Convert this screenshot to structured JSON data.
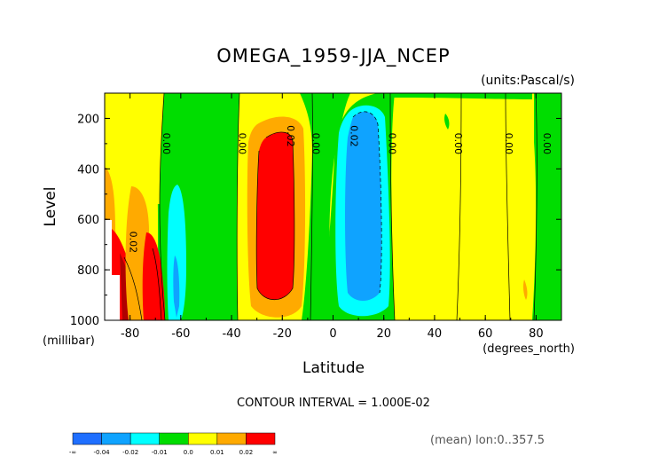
{
  "chart_data": {
    "type": "heatmap",
    "title": "OMEGA_1959-JJA_NCEP",
    "units_label": "(units:Pascal/s)",
    "xlabel": "Latitude",
    "x_units": "(degrees_north)",
    "ylabel": "Level",
    "y_units": "(millibar)",
    "xlim": [
      -90,
      90
    ],
    "ylim": [
      1000,
      100
    ],
    "x_ticks": [
      "-80",
      "-60",
      "-40",
      "-20",
      "0",
      "20",
      "40",
      "60",
      "80"
    ],
    "x_tick_values": [
      -80,
      -60,
      -40,
      -20,
      0,
      20,
      40,
      60,
      80
    ],
    "y_ticks": [
      "200",
      "400",
      "600",
      "800",
      "1000"
    ],
    "y_tick_values": [
      200,
      400,
      600,
      800,
      1000
    ],
    "contour_interval_text": "CONTOUR INTERVAL = 1.000E-02",
    "footnote": "(mean) lon:0..357.5",
    "colorbar": {
      "labels": [
        "-∞",
        "-0.04",
        "-0.02",
        "-0.01",
        "0.0",
        "0.01",
        "0.02",
        "∞"
      ],
      "colors": [
        "#1f6fff",
        "#0fa3ff",
        "#00ffff",
        "#00dd00",
        "#ffff00",
        "#ffaa00",
        "#ff0000"
      ]
    },
    "contour_labels": [
      {
        "text": "0.00",
        "lat": -67,
        "level": 300
      },
      {
        "text": "0.00",
        "lat": -37,
        "level": 300
      },
      {
        "text": "0.02",
        "lat": -18,
        "level": 270
      },
      {
        "text": "0.00",
        "lat": -8,
        "level": 300
      },
      {
        "text": "0.02",
        "lat": 7,
        "level": 270
      },
      {
        "text": "0.00",
        "lat": 22,
        "level": 300
      },
      {
        "text": "0.00",
        "lat": 48,
        "level": 300
      },
      {
        "text": "0.00",
        "lat": 68,
        "level": 300
      },
      {
        "text": "0.00",
        "lat": 83,
        "level": 300
      },
      {
        "text": "0.02",
        "lat": -80,
        "level": 690
      }
    ],
    "regions": [
      {
        "name": "southern green band",
        "band": "0.0 to 0.01 (negative side)",
        "color": "#00dd00"
      },
      {
        "name": "southern descent red",
        "band": "> 0.02",
        "color": "#ff0000"
      },
      {
        "name": "subtropical south descent red",
        "band": "> 0.02",
        "color": "#ff0000"
      },
      {
        "name": "equatorial ascent blue",
        "band": "-0.02 to -0.04",
        "color": "#0fa3ff"
      },
      {
        "name": "cyan ascent near -63",
        "band": "-0.01 to -0.02",
        "color": "#00ffff"
      }
    ]
  }
}
